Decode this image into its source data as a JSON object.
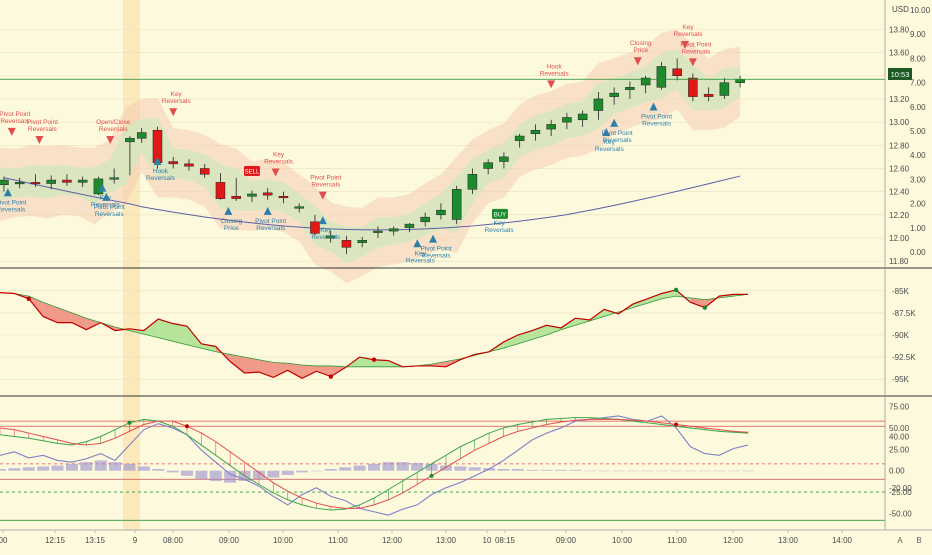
{
  "axis_unit": "USD",
  "price_badge": "10:53",
  "right_axis_secondary_letter": "B",
  "right_axis_toggle": "A",
  "chart_data": [
    {
      "type": "candlestick",
      "panel": "price",
      "y_ticks": [
        11.8,
        12.0,
        12.2,
        12.4,
        12.6,
        12.8,
        13.0,
        13.2,
        13.4,
        13.6,
        13.8
      ],
      "secondary_ticks": [
        "0.00",
        "1.00",
        "2.00",
        "3.00",
        "4.00",
        "5.00",
        "6.00",
        "7.00",
        "8.00",
        "9.00",
        "10.00"
      ],
      "ylim": [
        11.7,
        14.0
      ],
      "current_price": 13.37,
      "candles": [
        {
          "x": 1,
          "o": 12.46,
          "h": 12.53,
          "l": 12.4,
          "c": 12.5
        },
        {
          "x": 5,
          "o": 12.47,
          "h": 12.52,
          "l": 12.43,
          "c": 12.48
        },
        {
          "x": 9,
          "o": 12.48,
          "h": 12.55,
          "l": 12.44,
          "c": 12.47
        },
        {
          "x": 13,
          "o": 12.47,
          "h": 12.54,
          "l": 12.42,
          "c": 12.5
        },
        {
          "x": 17,
          "o": 12.5,
          "h": 12.55,
          "l": 12.45,
          "c": 12.48
        },
        {
          "x": 21,
          "o": 12.48,
          "h": 12.53,
          "l": 12.44,
          "c": 12.5
        },
        {
          "x": 25,
          "o": 12.38,
          "h": 12.53,
          "l": 12.37,
          "c": 12.51
        },
        {
          "x": 29,
          "o": 12.51,
          "h": 12.6,
          "l": 12.47,
          "c": 12.52
        },
        {
          "x": 33,
          "o": 12.83,
          "h": 12.88,
          "l": 12.54,
          "c": 12.86
        },
        {
          "x": 36,
          "o": 12.86,
          "h": 12.95,
          "l": 12.82,
          "c": 12.91
        },
        {
          "x": 40,
          "o": 12.93,
          "h": 12.96,
          "l": 12.6,
          "c": 12.65
        },
        {
          "x": 44,
          "o": 12.66,
          "h": 12.7,
          "l": 12.6,
          "c": 12.64
        },
        {
          "x": 48,
          "o": 12.64,
          "h": 12.68,
          "l": 12.58,
          "c": 12.62
        },
        {
          "x": 52,
          "o": 12.6,
          "h": 12.64,
          "l": 12.52,
          "c": 12.55
        },
        {
          "x": 56,
          "o": 12.48,
          "h": 12.56,
          "l": 12.33,
          "c": 12.34
        },
        {
          "x": 60,
          "o": 12.36,
          "h": 12.52,
          "l": 12.32,
          "c": 12.34
        },
        {
          "x": 64,
          "o": 12.36,
          "h": 12.41,
          "l": 12.31,
          "c": 12.38
        },
        {
          "x": 68,
          "o": 12.39,
          "h": 12.43,
          "l": 12.33,
          "c": 12.37
        },
        {
          "x": 72,
          "o": 12.36,
          "h": 12.4,
          "l": 12.3,
          "c": 12.35
        },
        {
          "x": 76,
          "o": 12.26,
          "h": 12.3,
          "l": 12.22,
          "c": 12.27
        },
        {
          "x": 80,
          "o": 12.14,
          "h": 12.2,
          "l": 12.02,
          "c": 12.04
        },
        {
          "x": 84,
          "o": 12.0,
          "h": 12.06,
          "l": 11.96,
          "c": 12.02
        },
        {
          "x": 88,
          "o": 11.98,
          "h": 12.02,
          "l": 11.86,
          "c": 11.92
        },
        {
          "x": 92,
          "o": 11.96,
          "h": 12.01,
          "l": 11.92,
          "c": 11.98
        },
        {
          "x": 96,
          "o": 12.05,
          "h": 12.1,
          "l": 12.0,
          "c": 12.06
        },
        {
          "x": 100,
          "o": 12.06,
          "h": 12.1,
          "l": 12.02,
          "c": 12.08
        },
        {
          "x": 104,
          "o": 12.09,
          "h": 12.13,
          "l": 12.05,
          "c": 12.12
        },
        {
          "x": 108,
          "o": 12.14,
          "h": 12.22,
          "l": 12.1,
          "c": 12.18
        },
        {
          "x": 112,
          "o": 12.2,
          "h": 12.3,
          "l": 12.16,
          "c": 12.24
        },
        {
          "x": 116,
          "o": 12.16,
          "h": 12.45,
          "l": 12.12,
          "c": 12.42
        },
        {
          "x": 120,
          "o": 12.42,
          "h": 12.6,
          "l": 12.38,
          "c": 12.55
        },
        {
          "x": 124,
          "o": 12.6,
          "h": 12.68,
          "l": 12.55,
          "c": 12.65
        },
        {
          "x": 128,
          "o": 12.66,
          "h": 12.74,
          "l": 12.6,
          "c": 12.7
        },
        {
          "x": 132,
          "o": 12.84,
          "h": 12.9,
          "l": 12.78,
          "c": 12.88
        },
        {
          "x": 136,
          "o": 12.9,
          "h": 12.98,
          "l": 12.84,
          "c": 12.93
        },
        {
          "x": 140,
          "o": 12.94,
          "h": 13.02,
          "l": 12.88,
          "c": 12.98
        },
        {
          "x": 144,
          "o": 13.0,
          "h": 13.08,
          "l": 12.94,
          "c": 13.04
        },
        {
          "x": 148,
          "o": 13.02,
          "h": 13.1,
          "l": 12.96,
          "c": 13.07
        },
        {
          "x": 152,
          "o": 13.1,
          "h": 13.26,
          "l": 13.02,
          "c": 13.2
        },
        {
          "x": 156,
          "o": 13.22,
          "h": 13.3,
          "l": 13.15,
          "c": 13.25
        },
        {
          "x": 160,
          "o": 13.28,
          "h": 13.35,
          "l": 13.2,
          "c": 13.3
        },
        {
          "x": 164,
          "o": 13.32,
          "h": 13.4,
          "l": 13.25,
          "c": 13.38
        },
        {
          "x": 168,
          "o": 13.3,
          "h": 13.52,
          "l": 13.28,
          "c": 13.48
        },
        {
          "x": 172,
          "o": 13.46,
          "h": 13.55,
          "l": 13.36,
          "c": 13.4
        },
        {
          "x": 176,
          "o": 13.38,
          "h": 13.42,
          "l": 13.18,
          "c": 13.22
        },
        {
          "x": 180,
          "o": 13.24,
          "h": 13.3,
          "l": 13.18,
          "c": 13.22
        },
        {
          "x": 184,
          "o": 13.23,
          "h": 13.38,
          "l": 13.2,
          "c": 13.34
        },
        {
          "x": 188,
          "o": 13.34,
          "h": 13.4,
          "l": 13.3,
          "c": 13.37
        }
      ],
      "signals": [
        {
          "x": 3,
          "price": 12.95,
          "dir": "down",
          "label": "Pivot Point Reversals"
        },
        {
          "x": 10,
          "price": 12.88,
          "dir": "down",
          "label": "Pivot Point Reversals"
        },
        {
          "x": 28,
          "price": 12.88,
          "dir": "down",
          "label": "Open/Close Reversals"
        },
        {
          "x": 44,
          "price": 13.12,
          "dir": "down",
          "label": "Key Reversals"
        },
        {
          "x": 70,
          "price": 12.6,
          "dir": "down",
          "label": "Key Reversals"
        },
        {
          "x": 82,
          "price": 12.4,
          "dir": "down",
          "label": "Pivot Point Reversals"
        },
        {
          "x": 140,
          "price": 13.36,
          "dir": "down",
          "label": "Hook Reversals"
        },
        {
          "x": 162,
          "price": 13.56,
          "dir": "down",
          "label": "Closing Price"
        },
        {
          "x": 176,
          "price": 13.55,
          "dir": "down",
          "label": "Pivot Point Reversals"
        },
        {
          "x": 174,
          "price": 13.7,
          "dir": "down",
          "label": "Key Reversals"
        },
        {
          "x": 2,
          "price": 12.36,
          "dir": "up",
          "label": "Pivot Point Reversals"
        },
        {
          "x": 26,
          "price": 12.4,
          "dir": "up",
          "label": "Key Reversals"
        },
        {
          "x": 27,
          "price": 12.32,
          "dir": "up",
          "label": "Pivot Point Reversals"
        },
        {
          "x": 40,
          "price": 12.63,
          "dir": "up",
          "label": "Hook Reversals"
        },
        {
          "x": 58,
          "price": 12.2,
          "dir": "up",
          "label": "Closing Price"
        },
        {
          "x": 68,
          "price": 12.2,
          "dir": "up",
          "label": "Pivot Point Reversals"
        },
        {
          "x": 82,
          "price": 12.12,
          "dir": "up",
          "label": "Key Reversals"
        },
        {
          "x": 110,
          "price": 11.96,
          "dir": "up",
          "label": "Pivot Point Reversals"
        },
        {
          "x": 106,
          "price": 11.92,
          "dir": "up",
          "label": "Key Reversals"
        },
        {
          "x": 126,
          "price": 12.18,
          "dir": "up",
          "label": "Key Reversals"
        },
        {
          "x": 156,
          "price": 12.96,
          "dir": "up",
          "label": "Pivot Point Reversals"
        },
        {
          "x": 154,
          "price": 12.88,
          "dir": "up",
          "label": "Key Reversals"
        },
        {
          "x": 166,
          "price": 13.1,
          "dir": "up",
          "label": "Pivot Point Reversals"
        }
      ],
      "markers": [
        {
          "x": 64,
          "price": 12.57,
          "label": "SELL",
          "kind": "sell"
        },
        {
          "x": 127,
          "price": 12.2,
          "label": "BUY",
          "kind": "buy"
        }
      ]
    },
    {
      "type": "area",
      "panel": "middle-oscillator",
      "y_ticks": [
        "-85K",
        "-87.5K",
        "-90K",
        "-92.5K",
        "-95K"
      ],
      "y_values": [
        -85000,
        -87500,
        -90000,
        -92500,
        -95000
      ],
      "ylim": [
        -96000,
        -84000
      ],
      "series": [
        {
          "role": "fast",
          "values": [
            -85200,
            -85300,
            -85900,
            -87900,
            -88600,
            -88600,
            -89400,
            -88600,
            -89500,
            -89300,
            -89500,
            -88200,
            -88700,
            -89000,
            -91000,
            -91300,
            -93000,
            -94300,
            -94200,
            -94800,
            -94000,
            -94900,
            -94100,
            -94700,
            -93700,
            -92500,
            -92800,
            -92900,
            -93600,
            -93500,
            -93500,
            -93600,
            -92800,
            -92200,
            -91900,
            -90800,
            -90000,
            -89500,
            -88900,
            -89200,
            -88100,
            -88300,
            -87100,
            -87600,
            -86500,
            -85900,
            -85300,
            -84900,
            -86300,
            -86900,
            -85600,
            -85400,
            -85400
          ]
        },
        {
          "role": "slow",
          "values": [
            -85200,
            -85300,
            -85600,
            -86300,
            -86900,
            -87500,
            -88100,
            -88600,
            -89100,
            -89500,
            -89900,
            -90300,
            -90700,
            -91100,
            -91500,
            -91900,
            -92200,
            -92500,
            -92800,
            -93100,
            -93200,
            -93400,
            -93500,
            -93500,
            -93600,
            -93600,
            -93600,
            -93600,
            -93600,
            -93500,
            -93300,
            -93000,
            -92700,
            -92300,
            -91900,
            -91500,
            -91000,
            -90500,
            -90000,
            -89400,
            -88900,
            -88400,
            -87900,
            -87400,
            -86900,
            -86400,
            -85900,
            -85600,
            -85800,
            -86000,
            -85800,
            -85600,
            -85400
          ]
        }
      ]
    },
    {
      "type": "line",
      "panel": "bottom-oscillator",
      "y_ticks": [
        "75.00",
        "50.00",
        "40.00",
        "25.00",
        "0.00",
        "-20.00",
        "-25.00",
        "-50.00"
      ],
      "y_values": [
        75,
        50,
        40,
        25,
        0,
        -20,
        -25,
        -50
      ],
      "ylim": [
        -60,
        80
      ],
      "reference_lines": [
        58,
        52,
        8,
        -10,
        -25,
        -58
      ],
      "series": [
        {
          "role": "blue",
          "values": [
            18,
            22,
            15,
            18,
            12,
            10,
            14,
            20,
            12,
            30,
            48,
            55,
            50,
            42,
            24,
            10,
            -4,
            -10,
            -18,
            -30,
            -40,
            -28,
            -20,
            -30,
            -35,
            -44,
            -48,
            -52,
            -45,
            -40,
            -28,
            -20,
            -14,
            -6,
            2,
            12,
            24,
            36,
            44,
            50,
            58,
            60,
            62,
            64,
            60,
            58,
            64,
            50,
            28,
            20,
            18,
            26,
            30
          ]
        },
        {
          "role": "green",
          "values": [
            42,
            40,
            38,
            35,
            32,
            30,
            34,
            40,
            48,
            56,
            60,
            58,
            52,
            42,
            30,
            18,
            6,
            -6,
            -16,
            -26,
            -34,
            -40,
            -44,
            -46,
            -45,
            -40,
            -32,
            -22,
            -12,
            -2,
            8,
            18,
            28,
            36,
            44,
            50,
            54,
            57,
            60,
            61,
            62,
            62,
            61,
            60,
            58,
            56,
            54,
            52,
            50,
            48,
            46,
            45,
            44
          ]
        },
        {
          "role": "red",
          "values": [
            50,
            48,
            44,
            40,
            36,
            32,
            30,
            32,
            38,
            46,
            54,
            58,
            58,
            52,
            44,
            34,
            22,
            10,
            -2,
            -14,
            -24,
            -32,
            -38,
            -42,
            -44,
            -44,
            -40,
            -34,
            -26,
            -16,
            -6,
            4,
            14,
            24,
            32,
            40,
            46,
            50,
            54,
            57,
            59,
            60,
            60,
            60,
            59,
            58,
            56,
            54,
            52,
            50,
            48,
            46,
            45
          ]
        },
        {
          "role": "histogram",
          "values": [
            2,
            3,
            4,
            5,
            6,
            8,
            10,
            12,
            10,
            8,
            5,
            2,
            -2,
            -6,
            -10,
            -12,
            -14,
            -12,
            -10,
            -8,
            -5,
            -2,
            0,
            2,
            4,
            6,
            8,
            10,
            10,
            9,
            8,
            6,
            5,
            4,
            3,
            2,
            2,
            1,
            1,
            1,
            1,
            0,
            0,
            0,
            0,
            0,
            0,
            0,
            0,
            0,
            0,
            0,
            0
          ]
        }
      ]
    }
  ],
  "x_axis": {
    "labels": [
      "00",
      "12:15",
      "13:15",
      "9",
      "08:00",
      "09:00",
      "10:00",
      "11:00",
      "12:00",
      "13:00",
      "10",
      "08:15",
      "09:00",
      "10:00",
      "11:00",
      "12:00",
      "13:00",
      "14:00"
    ],
    "label_x": [
      3,
      55,
      95,
      135,
      173,
      229,
      283,
      338,
      392,
      446,
      487,
      505,
      566,
      622,
      677,
      733,
      788,
      842
    ]
  }
}
